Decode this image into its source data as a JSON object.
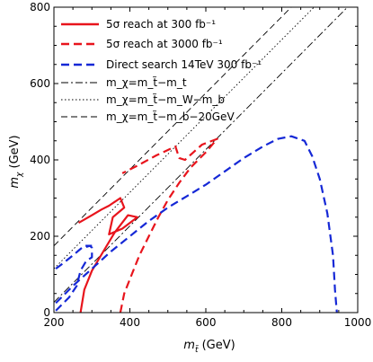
{
  "chart_data": {
    "type": "line",
    "title": "",
    "xlabel": "m_t̃ (GeV)",
    "ylabel": "m_χ (GeV)",
    "xlim": [
      200,
      1000
    ],
    "ylim": [
      0,
      800
    ],
    "xticks": [
      "200",
      "400",
      "600",
      "800",
      "1000"
    ],
    "yticks": [
      "0",
      "200",
      "400",
      "600",
      "800"
    ],
    "legend_position": "top-left",
    "grid": false,
    "series": [
      {
        "name": "5σ reach at 300 fb⁻¹",
        "color": "#e8141c",
        "style": "solid",
        "points": [
          [
            270,
            0
          ],
          [
            280,
            60
          ],
          [
            300,
            110
          ],
          [
            330,
            160
          ],
          [
            360,
            210
          ],
          [
            395,
            255
          ],
          [
            420,
            250
          ],
          [
            380,
            220
          ],
          [
            345,
            205
          ],
          [
            355,
            250
          ],
          [
            385,
            275
          ],
          [
            375,
            300
          ],
          [
            345,
            280
          ],
          [
            325,
            270
          ],
          [
            300,
            255
          ],
          [
            265,
            235
          ]
        ]
      },
      {
        "name": "5σ reach at 3000 fb⁻¹",
        "color": "#e8141c",
        "style": "dashed",
        "points": [
          [
            375,
            0
          ],
          [
            385,
            50
          ],
          [
            405,
            100
          ],
          [
            425,
            150
          ],
          [
            450,
            200
          ],
          [
            475,
            250
          ],
          [
            500,
            295
          ],
          [
            530,
            340
          ],
          [
            560,
            380
          ],
          [
            600,
            420
          ],
          [
            630,
            455
          ],
          [
            590,
            440
          ],
          [
            565,
            418
          ],
          [
            545,
            400
          ],
          [
            530,
            405
          ],
          [
            520,
            435
          ],
          [
            470,
            412
          ],
          [
            420,
            385
          ],
          [
            380,
            365
          ]
        ]
      },
      {
        "name": "Direct search 14TeV 300 fb⁻¹",
        "color": "#1528d6",
        "style": "dashed",
        "points": [
          [
            205,
            25
          ],
          [
            250,
            70
          ],
          [
            300,
            115
          ],
          [
            350,
            160
          ],
          [
            400,
            200
          ],
          [
            450,
            240
          ],
          [
            500,
            275
          ],
          [
            550,
            305
          ],
          [
            600,
            335
          ],
          [
            650,
            370
          ],
          [
            700,
            405
          ],
          [
            750,
            435
          ],
          [
            790,
            455
          ],
          [
            825,
            462
          ],
          [
            860,
            450
          ],
          [
            880,
            410
          ],
          [
            900,
            350
          ],
          [
            920,
            260
          ],
          [
            935,
            150
          ],
          [
            940,
            60
          ],
          [
            945,
            0
          ]
        ],
        "extra_segments": [
          [
            [
              205,
              5
            ],
            [
              240,
              40
            ],
            [
              260,
              70
            ],
            [
              270,
              110
            ],
            [
              285,
              135
            ],
            [
              300,
              145
            ],
            [
              300,
              170
            ],
            [
              295,
              175
            ],
            [
              285,
              172
            ]
          ],
          [
            [
              205,
              115
            ],
            [
              225,
              130
            ],
            [
              250,
              150
            ],
            [
              268,
              165
            ],
            [
              280,
              175
            ],
            [
              300,
              175
            ]
          ]
        ]
      }
    ],
    "reference_lines": [
      {
        "name": "m_χ=m_t̃−m_t",
        "style": "dashdot",
        "offset": 173
      },
      {
        "name": "m_χ=m_t̃−m_W−m_b",
        "style": "dotted",
        "offset": 85
      },
      {
        "name": "m_χ=m_t̃−m_b−20GeV",
        "style": "longdash",
        "offset": 25
      }
    ]
  },
  "legend": {
    "items": [
      {
        "label": "5σ reach at 300 fb⁻¹",
        "color": "#e8141c",
        "style": "solid"
      },
      {
        "label": "5σ reach at 3000 fb⁻¹",
        "color": "#e8141c",
        "style": "dashed"
      },
      {
        "label": "Direct search 14TeV 300 fb⁻¹",
        "color": "#1528d6",
        "style": "dashed"
      },
      {
        "label": "m_χ=m_t̃−m_t",
        "color": "#000000",
        "style": "dashdot"
      },
      {
        "label": "m_χ=m_t̃−m_W−m_b",
        "color": "#000000",
        "style": "dotted"
      },
      {
        "label": "m_χ=m_t̃−m_b−20GeV",
        "color": "#000000",
        "style": "longdash"
      }
    ]
  }
}
